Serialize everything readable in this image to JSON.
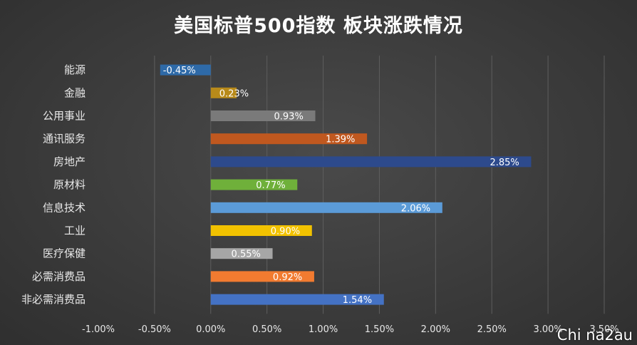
{
  "chart_data": {
    "type": "bar",
    "orientation": "horizontal",
    "title": "美国标普500指数 板块涨跌情况",
    "categories": [
      "能源",
      "金融",
      "公用事业",
      "通讯服务",
      "房地产",
      "原材料",
      "信息技术",
      "工业",
      "医疗保健",
      "必需消费品",
      "非必需消费品"
    ],
    "values": [
      -0.45,
      0.23,
      0.93,
      1.39,
      2.85,
      0.77,
      2.06,
      0.9,
      0.55,
      0.92,
      1.54
    ],
    "data_labels": [
      "-0.45%",
      "0.23%",
      "0.93%",
      "1.39%",
      "2.85%",
      "0.77%",
      "2.06%",
      "0.90%",
      "0.55%",
      "0.92%",
      "1.54%"
    ],
    "colors": [
      "#2e6aa8",
      "#b88a1a",
      "#7a7a7a",
      "#c0581f",
      "#2d4a8c",
      "#6fb03a",
      "#5b9bd8",
      "#f2c200",
      "#a6a6a6",
      "#f27b30",
      "#4472c4"
    ],
    "xlim": [
      -1.0,
      3.5
    ],
    "xticks": [
      -1.0,
      -0.5,
      0.0,
      0.5,
      1.0,
      1.5,
      2.0,
      2.5,
      3.0,
      3.5
    ],
    "xtick_labels": [
      "-1.00%",
      "-0.50%",
      "0.00%",
      "0.50%",
      "1.00%",
      "1.50%",
      "2.00%",
      "2.50%",
      "3.00%",
      "3.50%"
    ],
    "grid": true,
    "xlabel": "",
    "ylabel": ""
  },
  "watermark": "Chi na2au"
}
